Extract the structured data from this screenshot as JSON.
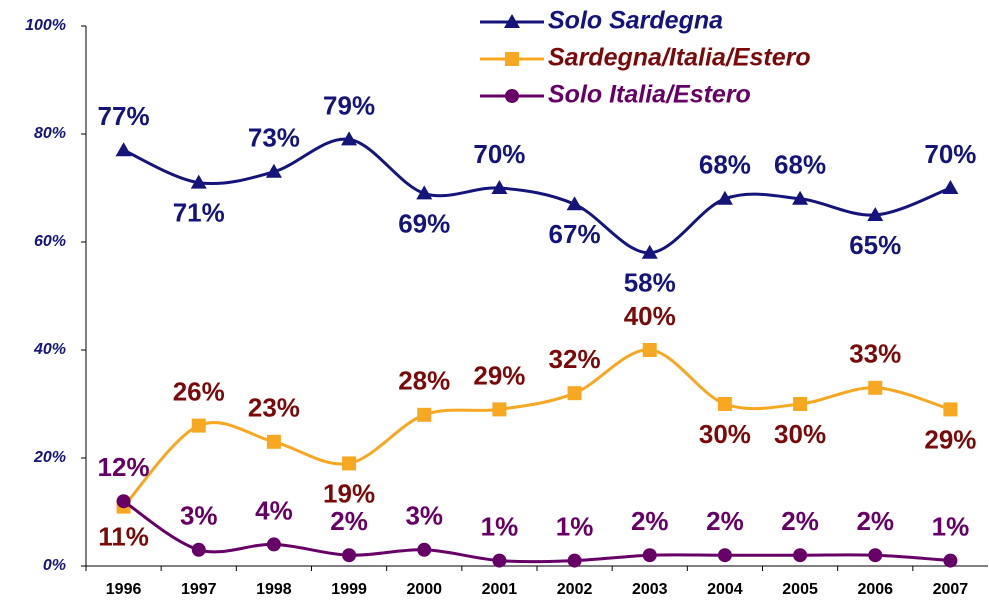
{
  "chart_data": {
    "type": "line",
    "categories": [
      "1996",
      "1997",
      "1998",
      "1999",
      "2000",
      "2001",
      "2002",
      "2003",
      "2004",
      "2005",
      "2006",
      "2007"
    ],
    "series": [
      {
        "name": "Solo Sardegna",
        "color": "#14147a",
        "label_color": "#14147a",
        "marker": "triangle",
        "values": [
          77,
          71,
          73,
          79,
          69,
          70,
          67,
          58,
          68,
          68,
          65,
          70
        ],
        "value_labels": [
          "77%",
          "71%",
          "73%",
          "79%",
          "69%",
          "70%",
          "67%",
          "58%",
          "68%",
          "68%",
          "65%",
          "70%"
        ]
      },
      {
        "name": "Sardegna/Italia/Estero",
        "color": "#f7a823",
        "label_color": "#7a0a0a",
        "marker": "square",
        "values": [
          11,
          26,
          23,
          19,
          28,
          29,
          32,
          40,
          30,
          30,
          33,
          29
        ],
        "value_labels": [
          "11%",
          "26%",
          "23%",
          "19%",
          "28%",
          "29%",
          "32%",
          "40%",
          "30%",
          "30%",
          "33%",
          "29%"
        ]
      },
      {
        "name": "Solo Italia/Estero",
        "color": "#660066",
        "label_color": "#660066",
        "marker": "circle",
        "values": [
          12,
          3,
          4,
          2,
          3,
          1,
          1,
          2,
          2,
          2,
          2,
          1
        ],
        "value_labels": [
          "12%",
          "3%",
          "4%",
          "2%",
          "3%",
          "1%",
          "1%",
          "2%",
          "2%",
          "2%",
          "2%",
          "1%"
        ]
      }
    ],
    "ylim": [
      0,
      100
    ],
    "yticks": [
      {
        "value": 0,
        "label": "0%"
      },
      {
        "value": 20,
        "label": "20%"
      },
      {
        "value": 40,
        "label": "40%"
      },
      {
        "value": 60,
        "label": "60%"
      },
      {
        "value": 80,
        "label": "80%"
      },
      {
        "value": 100,
        "label": "100%"
      }
    ],
    "grid": false,
    "smooth": true,
    "legend": "upper right"
  }
}
